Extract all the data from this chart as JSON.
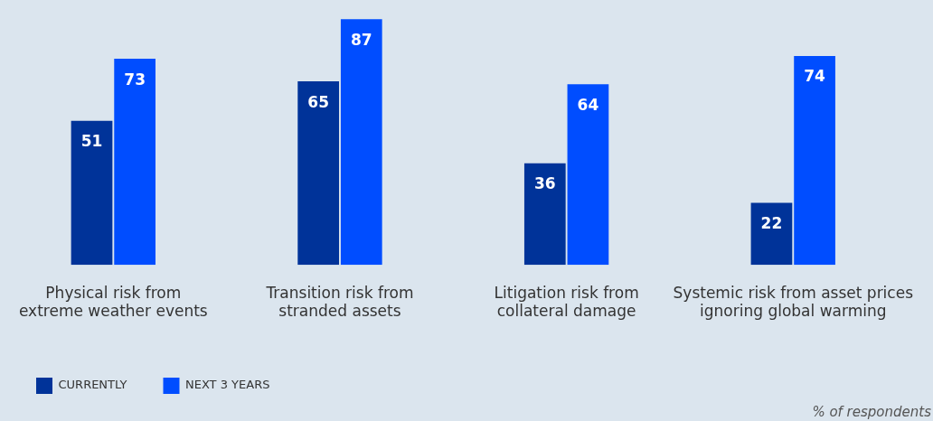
{
  "chart_data": {
    "type": "bar",
    "categories": [
      "Physical risk from\nextreme weather events",
      "Transition risk from\nstranded assets",
      "Litigation risk from\ncollateral damage",
      "Systemic risk from asset prices\nignoring global warming"
    ],
    "series": [
      {
        "name": "CURRENTLY",
        "color": "#003399",
        "values": [
          51,
          65,
          36,
          22
        ]
      },
      {
        "name": "NEXT 3 YEARS",
        "color": "#004dff",
        "values": [
          73,
          87,
          64,
          74
        ]
      }
    ],
    "data_labels": true,
    "legend": "bottom left",
    "grid": false,
    "annotations": [
      "% of respondents"
    ]
  }
}
